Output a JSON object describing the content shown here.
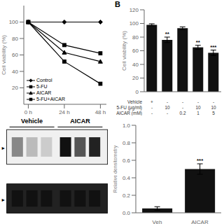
{
  "chart_data": [
    {
      "type": "line",
      "x": [
        0,
        24,
        48
      ],
      "xlim": [
        -3,
        52
      ],
      "xticks": [
        {
          "value": 0,
          "label": "0 h"
        },
        {
          "value": 24,
          "label": "24 h"
        },
        {
          "value": 48,
          "label": "48 h"
        }
      ],
      "ylabel": "Cell viability (%)",
      "ylim": [
        0,
        120
      ],
      "yticks": [
        20,
        40,
        60,
        80,
        100
      ],
      "legend": "lower left",
      "series": [
        {
          "name": "Control",
          "color": "black",
          "marker": "diamond",
          "values": [
            100,
            100,
            100
          ]
        },
        {
          "name": "5-FU",
          "color": "black",
          "marker": "square",
          "values": [
            100,
            72,
            62
          ]
        },
        {
          "name": "AICAR",
          "color": "black",
          "marker": "triangle",
          "values": [
            100,
            63,
            52
          ]
        },
        {
          "name": "5-FU+AICAR",
          "color": "black",
          "marker": "square",
          "values": [
            100,
            52,
            25
          ]
        }
      ]
    },
    {
      "type": "bar",
      "title": "B",
      "categories": [
        [
          "+",
          "-",
          "-"
        ],
        [
          "-",
          "10",
          "-"
        ],
        [
          "-",
          "-",
          "0.2"
        ],
        [
          "-",
          "10",
          "1"
        ],
        [
          "-",
          "10",
          "5"
        ]
      ],
      "row_labels": [
        "Vehicle",
        "5-FU (μg/ml)",
        "AICAR (mM)"
      ],
      "values": [
        98,
        76,
        93,
        65,
        57
      ],
      "errors": [
        1.5,
        4,
        2,
        3,
        4
      ],
      "annotations": [
        null,
        "**",
        null,
        "**",
        "***"
      ],
      "color": "#111111",
      "ylabel": "Cell viability (%)",
      "ylim": [
        0,
        120
      ],
      "yticks": [
        0,
        20,
        40,
        60,
        80,
        100,
        120
      ]
    },
    {
      "type": "blot",
      "categories": [
        "Vehicle",
        "AICAR"
      ],
      "series": [
        {
          "color": "#f0f0f0",
          "colors": [
            "#888888",
            "#bbbbbb",
            "#cccccc",
            "#111111",
            "#555555",
            "#222222"
          ]
        },
        {
          "color": "#222222",
          "colors": [
            "#111111",
            "#111111",
            "#111111",
            "#111111",
            "#111111",
            "#111111"
          ]
        }
      ],
      "annotations": [
        "►",
        "►"
      ]
    },
    {
      "type": "bar",
      "categories": [
        "Veh",
        "AICAR"
      ],
      "values": [
        0.05,
        0.5
      ],
      "errors": [
        0.02,
        0.06
      ],
      "annotations": [
        null,
        "***"
      ],
      "color": "#111111",
      "ylabel": "Relative densitometry",
      "ylim": [
        0,
        1.0
      ],
      "yticks": [
        {
          "value": 0,
          "label": "0.0"
        },
        0.2,
        0.4,
        0.6,
        0.8,
        {
          "value": 1,
          "label": "1.0"
        }
      ]
    }
  ]
}
